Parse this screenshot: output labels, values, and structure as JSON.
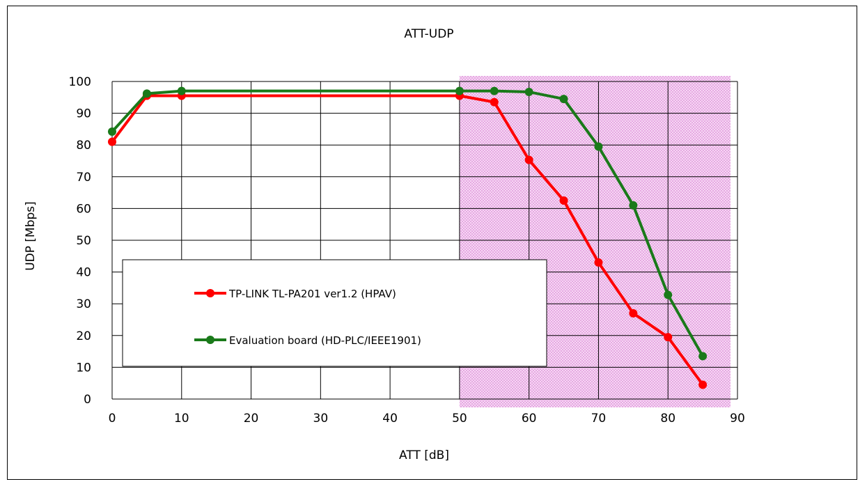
{
  "chart_data": {
    "type": "line",
    "title": "ATT-UDP",
    "xlabel": "ATT [dB]",
    "ylabel": "UDP [Mbps]",
    "xlim": [
      0,
      90
    ],
    "ylim": [
      0,
      100
    ],
    "xticks": [
      0,
      10,
      20,
      30,
      40,
      50,
      60,
      70,
      80,
      90
    ],
    "yticks": [
      0,
      10,
      20,
      30,
      40,
      50,
      60,
      70,
      80,
      90,
      100
    ],
    "grid": true,
    "legend_position": "lower-left, inside plot",
    "highlight_region": {
      "x": [
        50,
        89
      ],
      "color": "#f1b8ee"
    },
    "x": [
      0,
      5,
      10,
      50,
      55,
      60,
      65,
      70,
      75,
      80,
      85
    ],
    "series": [
      {
        "name": "TP-LINK TL-PA201 ver1.2 (HPAV)",
        "color": "#ff0000",
        "x": [
          0,
          5,
          10,
          50,
          55,
          60,
          65,
          70,
          75,
          80,
          85
        ],
        "values": [
          81,
          95.5,
          95.5,
          95.5,
          93.5,
          75.3,
          62.5,
          43,
          27,
          19.5,
          4.5
        ]
      },
      {
        "name": "Evaluation board (HD-PLC/IEEE1901)",
        "color": "#1a7a1a",
        "x": [
          0,
          5,
          10,
          50,
          55,
          60,
          65,
          70,
          75,
          80,
          85
        ],
        "values": [
          84.2,
          96.2,
          97,
          97,
          97,
          96.7,
          94.5,
          79.5,
          61,
          32.8,
          13.5
        ]
      }
    ]
  }
}
